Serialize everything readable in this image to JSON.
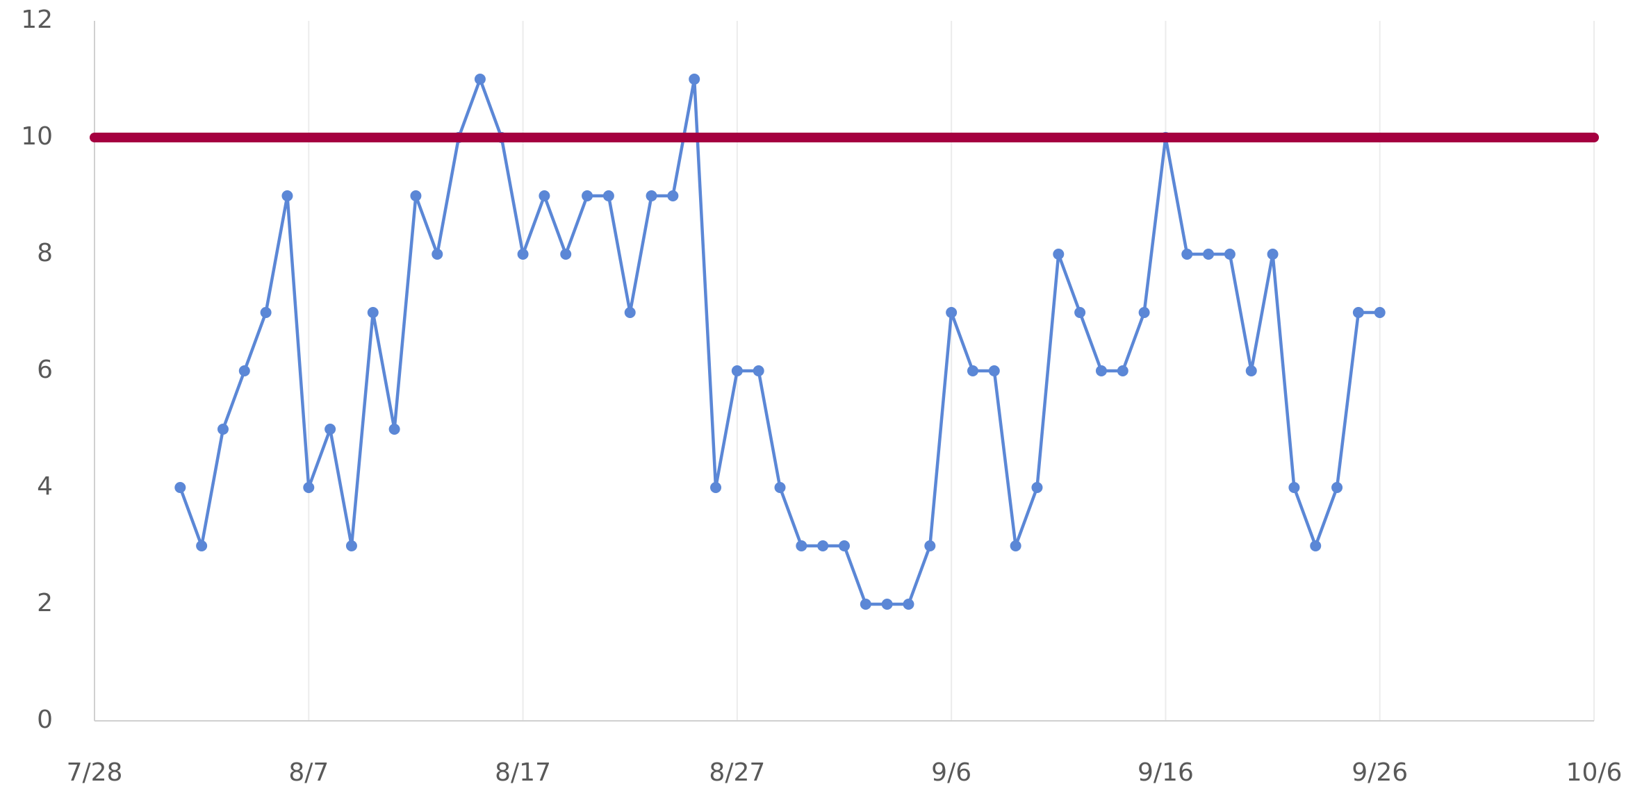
{
  "chart_data": {
    "type": "line",
    "xlim": [
      "7/28",
      "10/6"
    ],
    "xticks": [
      "7/28",
      "8/7",
      "8/17",
      "8/27",
      "9/6",
      "9/16",
      "9/26",
      "10/6"
    ],
    "ylim": [
      0,
      12
    ],
    "yticks": [
      0,
      2,
      4,
      6,
      8,
      10,
      12
    ],
    "grid": "x",
    "series": [
      {
        "color": "#5b87d6",
        "markers": true,
        "x": [
          "8/1",
          "8/2",
          "8/3",
          "8/4",
          "8/5",
          "8/6",
          "8/7",
          "8/8",
          "8/9",
          "8/10",
          "8/11",
          "8/12",
          "8/13",
          "8/14",
          "8/15",
          "8/16",
          "8/17",
          "8/18",
          "8/19",
          "8/20",
          "8/21",
          "8/22",
          "8/23",
          "8/24",
          "8/25",
          "8/26",
          "8/27",
          "8/28",
          "8/29",
          "8/30",
          "8/31",
          "9/1",
          "9/2",
          "9/3",
          "9/4",
          "9/5",
          "9/6",
          "9/7",
          "9/8",
          "9/9",
          "9/10",
          "9/11",
          "9/12",
          "9/13",
          "9/14",
          "9/15",
          "9/16",
          "9/17",
          "9/18",
          "9/19",
          "9/20",
          "9/21",
          "9/22",
          "9/23",
          "9/24",
          "9/25",
          "9/26"
        ],
        "values": [
          4,
          3,
          5,
          6,
          7,
          9,
          4,
          5,
          3,
          7,
          5,
          9,
          8,
          10,
          11,
          10,
          8,
          9,
          8,
          9,
          9,
          7,
          9,
          9,
          11,
          4,
          6,
          6,
          4,
          3,
          3,
          3,
          2,
          2,
          2,
          3,
          7,
          6,
          6,
          3,
          4,
          8,
          7,
          6,
          6,
          7,
          10,
          8,
          8,
          8,
          6,
          8,
          4,
          3,
          4,
          7,
          7
        ]
      },
      {
        "color": "#a50040",
        "markers": false,
        "x": [
          "7/28",
          "10/6"
        ],
        "values": [
          10,
          10
        ]
      }
    ]
  }
}
